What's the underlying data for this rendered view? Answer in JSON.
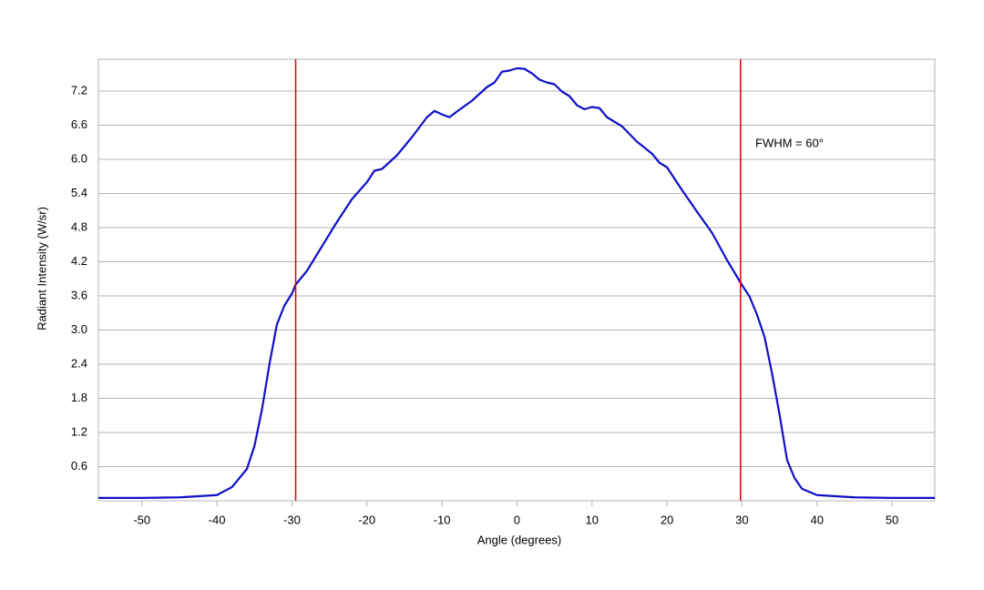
{
  "chart_data": {
    "type": "line",
    "x_label": "Angle (degrees)",
    "y_label": "Radiant Intensity (W/sr)",
    "annotation": "FWHM = 60°",
    "x": [
      -55.8,
      -50,
      -45,
      -40,
      -38,
      -36,
      -35,
      -34,
      -33,
      -32,
      -31,
      -30,
      -29.5,
      -28,
      -26,
      -24,
      -22,
      -20,
      -19,
      -18,
      -16,
      -14,
      -12,
      -11,
      -10,
      -9,
      -8,
      -6,
      -4,
      -3,
      -2,
      -1,
      0,
      1,
      2,
      3,
      4,
      5,
      6,
      7,
      8,
      9,
      10,
      11,
      12,
      14,
      16,
      18,
      19,
      20,
      22,
      24,
      26,
      28,
      30,
      31,
      32,
      33,
      34,
      35,
      36,
      37,
      38,
      40,
      45,
      50,
      55.7
    ],
    "series": [
      {
        "color": "#1010c8",
        "values": [
          0.05,
          0.05,
          0.06,
          0.1,
          0.24,
          0.56,
          0.96,
          1.6,
          2.4,
          3.1,
          3.43,
          3.64,
          3.8,
          4.04,
          4.47,
          4.9,
          5.3,
          5.6,
          5.8,
          5.83,
          6.07,
          6.39,
          6.74,
          6.85,
          6.79,
          6.74,
          6.84,
          7.03,
          7.27,
          7.35,
          7.54,
          7.56,
          7.6,
          7.59,
          7.51,
          7.4,
          7.35,
          7.32,
          7.19,
          7.11,
          6.95,
          6.88,
          6.92,
          6.9,
          6.74,
          6.58,
          6.31,
          6.1,
          5.94,
          5.86,
          5.46,
          5.08,
          4.71,
          4.23,
          3.79,
          3.59,
          3.27,
          2.88,
          2.24,
          1.52,
          0.72,
          0.4,
          0.21,
          0.1,
          0.06,
          0.05,
          0.05
        ]
      }
    ],
    "vlines": [
      -29.5,
      29.8
    ],
    "vline_color": "#e00000",
    "xlim": [
      -55.8,
      55.7
    ],
    "ylim": [
      0,
      7.76
    ],
    "xticks": [
      -50,
      -40,
      -30,
      -20,
      -10,
      0,
      10,
      20,
      30,
      40,
      50
    ],
    "yticks": [
      0.6,
      1.2,
      1.8,
      2.4,
      {
        "value": 3,
        "label": "3.0"
      },
      3.6,
      4.2,
      4.8,
      5.4,
      {
        "value": 6,
        "label": "6.0"
      },
      6.6,
      7.2
    ],
    "grid": true
  }
}
